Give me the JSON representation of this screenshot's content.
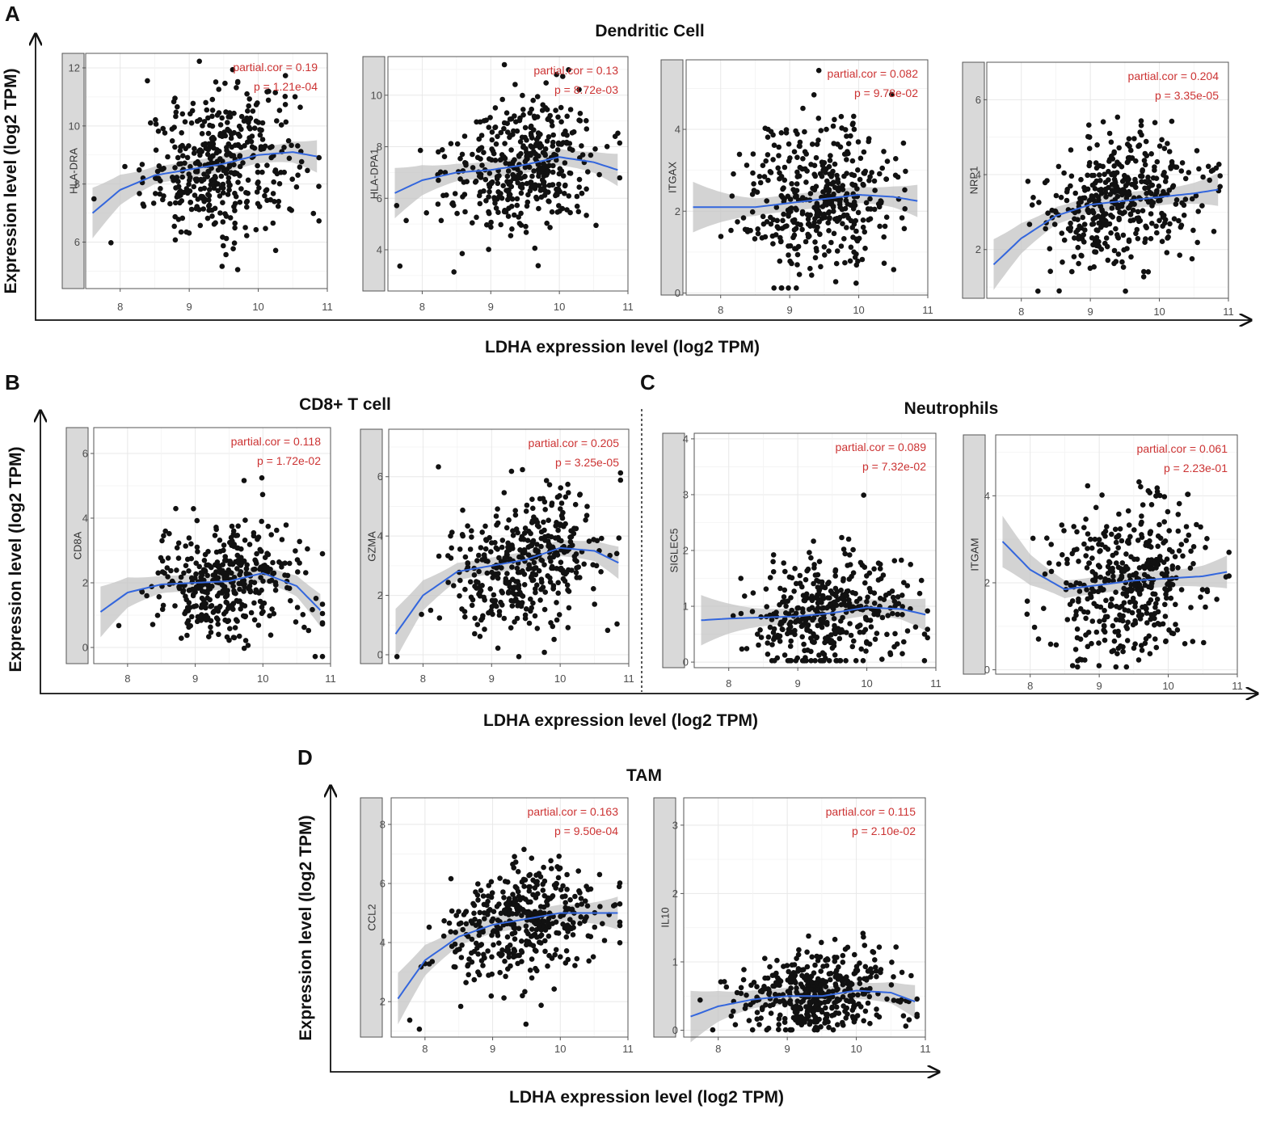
{
  "figure": {
    "x_axis_label": "LDHA expression level (log2 TPM)",
    "y_axis_label": "Expression level (log2 TPM)"
  },
  "sections": [
    {
      "letter": "A",
      "title": "Dendritic Cell"
    },
    {
      "letter": "B",
      "title": "CD8+ T cell"
    },
    {
      "letter": "C",
      "title": "Neutrophils"
    },
    {
      "letter": "D",
      "title": "TAM"
    }
  ],
  "colors": {
    "points": "#111111",
    "fit": "#3366dd",
    "ribbon": "#c4c4c4",
    "annotation": "#cc3333",
    "strip": "#d9d9d9"
  },
  "chart_data": [
    {
      "type": "scatter",
      "section": "A",
      "gene": "HLA-DRA",
      "xlabel": "LDHA expression level (log2 TPM)",
      "ylabel": "HLA-DRA",
      "xlim": [
        7.5,
        11
      ],
      "ylim": [
        4.4,
        12.5
      ],
      "xticks": [
        "8",
        "9",
        "10",
        "11"
      ],
      "yticks": [
        "6",
        "8",
        "10",
        "12"
      ],
      "partial_cor": "partial.cor = 0.19",
      "p_value": "p = 1.21e-04",
      "fit": {
        "x": [
          7.6,
          8.0,
          8.5,
          9.0,
          9.5,
          10.0,
          10.5,
          10.85
        ],
        "y": [
          7.0,
          7.8,
          8.3,
          8.5,
          8.7,
          9.0,
          9.1,
          8.95
        ]
      },
      "n_points": 420,
      "mean": 8.6,
      "sd": 1.45
    },
    {
      "type": "scatter",
      "section": "A",
      "gene": "HLA-DPA1",
      "xlabel": "LDHA expression level (log2 TPM)",
      "ylabel": "HLA-DPA1",
      "xlim": [
        7.5,
        11
      ],
      "ylim": [
        2.4,
        11.5
      ],
      "xticks": [
        "8",
        "9",
        "10",
        "11"
      ],
      "yticks": [
        "4",
        "6",
        "8",
        "10"
      ],
      "partial_cor": "partial.cor = 0.13",
      "p_value": "p = 8.72e-03",
      "fit": {
        "x": [
          7.6,
          8.0,
          8.5,
          9.0,
          9.5,
          10.0,
          10.5,
          10.85
        ],
        "y": [
          6.2,
          6.7,
          7.0,
          7.1,
          7.3,
          7.6,
          7.4,
          7.1
        ]
      },
      "n_points": 420,
      "mean": 7.2,
      "sd": 1.5
    },
    {
      "type": "scatter",
      "section": "A",
      "gene": "ITGAX",
      "xlabel": "LDHA expression level (log2 TPM)",
      "ylabel": "ITGAX",
      "xlim": [
        7.5,
        11
      ],
      "ylim": [
        -0.05,
        5.7
      ],
      "xticks": [
        "8",
        "9",
        "10",
        "11"
      ],
      "yticks": [
        "0",
        "2",
        "4"
      ],
      "partial_cor": "partial.cor = 0.082",
      "p_value": "p = 9.78e-02",
      "fit": {
        "x": [
          7.6,
          8.0,
          8.5,
          9.0,
          9.5,
          10.0,
          10.5,
          10.85
        ],
        "y": [
          2.1,
          2.1,
          2.1,
          2.2,
          2.3,
          2.4,
          2.35,
          2.25
        ]
      },
      "n_points": 420,
      "mean": 2.2,
      "sd": 1.15
    },
    {
      "type": "scatter",
      "section": "A",
      "gene": "NRP1",
      "xlabel": "LDHA expression level (log2 TPM)",
      "ylabel": "NRP1",
      "xlim": [
        7.5,
        11
      ],
      "ylim": [
        0.7,
        7.0
      ],
      "xticks": [
        "8",
        "9",
        "10",
        "11"
      ],
      "yticks": [
        "2",
        "4",
        "6"
      ],
      "partial_cor": "partial.cor = 0.204",
      "p_value": "p = 3.35e-05",
      "fit": {
        "x": [
          7.6,
          8.0,
          8.5,
          9.0,
          9.5,
          10.0,
          10.5,
          10.85
        ],
        "y": [
          1.6,
          2.3,
          2.9,
          3.2,
          3.3,
          3.4,
          3.5,
          3.6
        ]
      },
      "n_points": 420,
      "mean": 3.1,
      "sd": 1.05
    },
    {
      "type": "scatter",
      "section": "B",
      "gene": "CD8A",
      "xlabel": "LDHA expression level (log2 TPM)",
      "ylabel": "CD8A",
      "xlim": [
        7.5,
        11
      ],
      "ylim": [
        -0.5,
        6.8
      ],
      "xticks": [
        "8",
        "9",
        "10",
        "11"
      ],
      "yticks": [
        "0",
        "2",
        "4",
        "6"
      ],
      "partial_cor": "partial.cor = 0.118",
      "p_value": "p = 1.72e-02",
      "fit": {
        "x": [
          7.6,
          8.0,
          8.5,
          9.0,
          9.5,
          10.0,
          10.5,
          10.85
        ],
        "y": [
          1.1,
          1.7,
          1.95,
          2.0,
          2.05,
          2.3,
          1.9,
          1.15
        ]
      },
      "n_points": 400,
      "mean": 2.0,
      "sd": 1.1
    },
    {
      "type": "scatter",
      "section": "B",
      "gene": "GZMA",
      "xlabel": "LDHA expression level (log2 TPM)",
      "ylabel": "GZMA",
      "xlim": [
        7.5,
        11
      ],
      "ylim": [
        -0.3,
        7.6
      ],
      "xticks": [
        "8",
        "9",
        "10",
        "11"
      ],
      "yticks": [
        "0",
        "2",
        "4",
        "6"
      ],
      "partial_cor": "partial.cor = 0.205",
      "p_value": "p = 3.25e-05",
      "fit": {
        "x": [
          7.6,
          8.0,
          8.5,
          9.0,
          9.5,
          10.0,
          10.5,
          10.85
        ],
        "y": [
          0.7,
          2.0,
          2.8,
          3.0,
          3.2,
          3.6,
          3.5,
          3.1
        ]
      },
      "n_points": 420,
      "mean": 3.0,
      "sd": 1.3
    },
    {
      "type": "scatter",
      "section": "C",
      "gene": "SIGLEC5",
      "xlabel": "LDHA expression level (log2 TPM)",
      "ylabel": "SIGLEC5",
      "xlim": [
        7.5,
        11
      ],
      "ylim": [
        -0.1,
        4.1
      ],
      "xticks": [
        "8",
        "9",
        "10",
        "11"
      ],
      "yticks": [
        "0",
        "1",
        "2",
        "3",
        "4"
      ],
      "partial_cor": "partial.cor = 0.089",
      "p_value": "p = 7.32e-02",
      "fit": {
        "x": [
          7.6,
          8.0,
          8.5,
          9.0,
          9.5,
          10.0,
          10.5,
          10.85
        ],
        "y": [
          0.75,
          0.78,
          0.8,
          0.82,
          0.88,
          0.98,
          0.95,
          0.85
        ]
      },
      "n_points": 400,
      "mean": 0.8,
      "sd": 0.6
    },
    {
      "type": "scatter",
      "section": "C",
      "gene": "ITGAM",
      "xlabel": "LDHA expression level (log2 TPM)",
      "ylabel": "ITGAM",
      "xlim": [
        7.5,
        11
      ],
      "ylim": [
        -0.1,
        5.4
      ],
      "xticks": [
        "8",
        "9",
        "10",
        "11"
      ],
      "yticks": [
        "0",
        "2",
        "4"
      ],
      "partial_cor": "partial.cor = 0.061",
      "p_value": "p = 2.23e-01",
      "fit": {
        "x": [
          7.6,
          8.0,
          8.5,
          9.0,
          9.5,
          10.0,
          10.5,
          10.85
        ],
        "y": [
          2.95,
          2.3,
          1.85,
          1.95,
          2.05,
          2.1,
          2.15,
          2.25
        ]
      },
      "n_points": 420,
      "mean": 2.0,
      "sd": 1.1
    },
    {
      "type": "scatter",
      "section": "D",
      "gene": "CCL2",
      "xlabel": "LDHA expression level (log2 TPM)",
      "ylabel": "CCL2",
      "xlim": [
        7.5,
        11
      ],
      "ylim": [
        0.8,
        8.9
      ],
      "xticks": [
        "8",
        "9",
        "10",
        "11"
      ],
      "yticks": [
        "2",
        "4",
        "6",
        "8"
      ],
      "partial_cor": "partial.cor = 0.163",
      "p_value": "p = 9.50e-04",
      "fit": {
        "x": [
          7.6,
          8.0,
          8.5,
          9.0,
          9.5,
          10.0,
          10.5,
          10.85
        ],
        "y": [
          2.1,
          3.4,
          4.2,
          4.6,
          4.8,
          5.0,
          5.0,
          5.0
        ]
      },
      "n_points": 420,
      "mean": 4.6,
      "sd": 1.2
    },
    {
      "type": "scatter",
      "section": "D",
      "gene": "IL10",
      "xlabel": "LDHA expression level (log2 TPM)",
      "ylabel": "IL10",
      "xlim": [
        7.5,
        11
      ],
      "ylim": [
        -0.1,
        3.4
      ],
      "xticks": [
        "8",
        "9",
        "10",
        "11"
      ],
      "yticks": [
        "0",
        "1",
        "2",
        "3"
      ],
      "partial_cor": "partial.cor = 0.115",
      "p_value": "p = 2.10e-02",
      "fit": {
        "x": [
          7.6,
          8.0,
          8.5,
          9.0,
          9.5,
          10.0,
          10.5,
          10.85
        ],
        "y": [
          0.2,
          0.35,
          0.45,
          0.5,
          0.5,
          0.58,
          0.55,
          0.42
        ]
      },
      "n_points": 420,
      "mean": 0.5,
      "sd": 0.35
    }
  ]
}
